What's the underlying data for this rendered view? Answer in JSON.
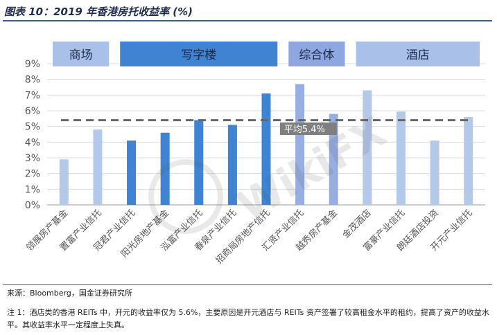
{
  "header": {
    "title": "图表 10：2019 年香港房托收益率 (%)"
  },
  "chart_data": {
    "type": "bar",
    "categories": [
      "领展房产基金",
      "置富产业信托",
      "冠君产业信托",
      "阳光房地产基金",
      "泓富产业信托",
      "春泉产业信托",
      "招商局房地产信托",
      "汇贤产业信托",
      "越秀房产基金",
      "金茂酒店",
      "富豪产业信托",
      "朗廷酒店投资",
      "开元产业信托"
    ],
    "values": [
      2.9,
      4.8,
      4.1,
      4.6,
      5.4,
      5.1,
      7.1,
      7.7,
      5.8,
      7.3,
      5.95,
      4.1,
      5.6
    ],
    "bar_colors": [
      "#b4c9ea",
      "#b4c9ea",
      "#3f84d2",
      "#3f84d2",
      "#3f84d2",
      "#3f84d2",
      "#3f84d2",
      "#97aee3",
      "#97aee3",
      "#b4c9ea",
      "#b4c9ea",
      "#b4c9ea",
      "#b4c9ea"
    ],
    "ylim": [
      0,
      9
    ],
    "yticks": [
      "0%",
      "1%",
      "2%",
      "3%",
      "4%",
      "5%",
      "6%",
      "7%",
      "8%",
      "9%"
    ],
    "average": {
      "value": 5.4,
      "label": "平均5.4%"
    },
    "groups": [
      {
        "label": "商场",
        "start": 0,
        "end": 1,
        "color": "#a9c1e8"
      },
      {
        "label": "写字楼",
        "start": 2,
        "end": 6,
        "color": "#3f84d2"
      },
      {
        "label": "综合体",
        "start": 7,
        "end": 8,
        "color": "#8fa7e0"
      },
      {
        "label": "酒店",
        "start": 9,
        "end": 12,
        "color": "#a9c1e8"
      }
    ]
  },
  "footer": {
    "source": "来源：Bloomberg，国金证券研究所",
    "note": "注 1：酒店类的香港 REITs 中，开元的收益率仅为 5.6%，主要原因是开元酒店与 REITs 资产签署了较高租金水平的租约，提高了资产的收益水平。其收益率水平一定程度上失真。"
  },
  "watermark": {
    "text": "WikiFX"
  }
}
